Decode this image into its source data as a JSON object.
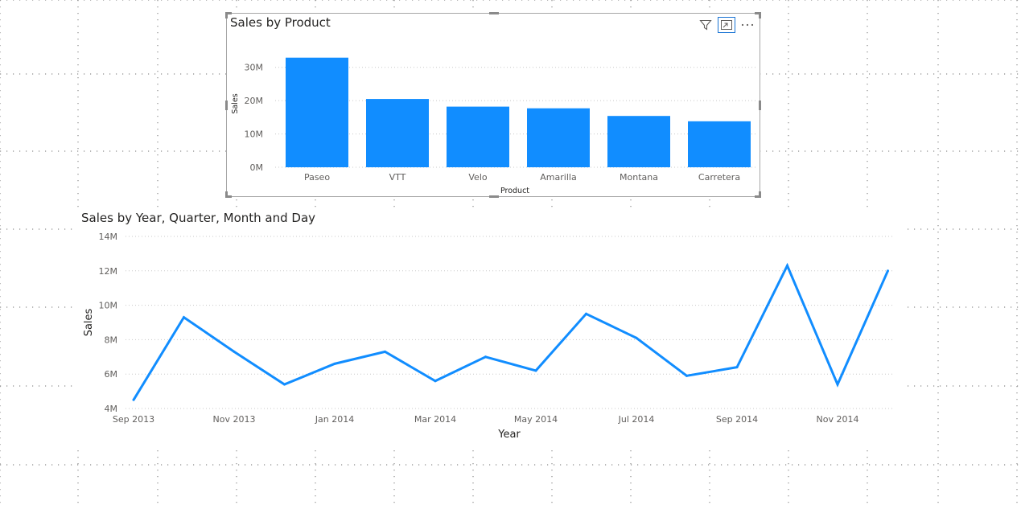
{
  "visuals": {
    "bar": {
      "title": "Sales by Product"
    },
    "line": {
      "title": "Sales by Year, Quarter, Month and Day"
    }
  },
  "header_icons": [
    "filter-icon",
    "focus-mode-icon",
    "more-options-icon"
  ],
  "colors": {
    "accent": "#118dff",
    "grid": "#c8c8c8",
    "axis_text": "#605e5c",
    "title_text": "#252423",
    "selection_border": "#1a74d4"
  },
  "chart_data": [
    {
      "type": "bar",
      "title": "Sales by Product",
      "xlabel": "Product",
      "ylabel": "Sales",
      "categories": [
        "Paseo",
        "VTT",
        "Velo",
        "Amarilla",
        "Montana",
        "Carretera"
      ],
      "values": [
        32900000,
        20500000,
        18200000,
        17700000,
        15400000,
        13800000
      ],
      "ylim": [
        0,
        35000000
      ],
      "yticks": [
        {
          "v": 0,
          "label": "0M"
        },
        {
          "v": 10000000,
          "label": "10M"
        },
        {
          "v": 20000000,
          "label": "20M"
        },
        {
          "v": 30000000,
          "label": "30M"
        }
      ],
      "grid": true,
      "color": "#118dff"
    },
    {
      "type": "line",
      "title": "Sales by Year, Quarter, Month and Day",
      "xlabel": "Year",
      "ylabel": "Sales",
      "x": [
        "2013-09",
        "2013-10",
        "2013-11",
        "2013-12",
        "2014-01",
        "2014-02",
        "2014-03",
        "2014-04",
        "2014-05",
        "2014-06",
        "2014-07",
        "2014-08",
        "2014-09",
        "2014-10",
        "2014-11",
        "2014-12"
      ],
      "values": [
        4500000,
        9300000,
        7300000,
        5400000,
        6600000,
        7300000,
        5600000,
        7000000,
        6200000,
        9500000,
        8100000,
        5900000,
        6400000,
        12300000,
        5400000,
        12000000
      ],
      "ylim": [
        4000000,
        14000000
      ],
      "yticks": [
        {
          "v": 4000000,
          "label": "4M"
        },
        {
          "v": 6000000,
          "label": "6M"
        },
        {
          "v": 8000000,
          "label": "8M"
        },
        {
          "v": 10000000,
          "label": "10M"
        },
        {
          "v": 12000000,
          "label": "12M"
        },
        {
          "v": 14000000,
          "label": "14M"
        }
      ],
      "xticks": [
        {
          "label": "Sep 2013"
        },
        {
          "label": "Nov 2013"
        },
        {
          "label": "Jan 2014"
        },
        {
          "label": "Mar 2014"
        },
        {
          "label": "May 2014"
        },
        {
          "label": "Jul 2014"
        },
        {
          "label": "Sep 2014"
        },
        {
          "label": "Nov 2014"
        }
      ],
      "grid": true,
      "color": "#118dff"
    }
  ]
}
